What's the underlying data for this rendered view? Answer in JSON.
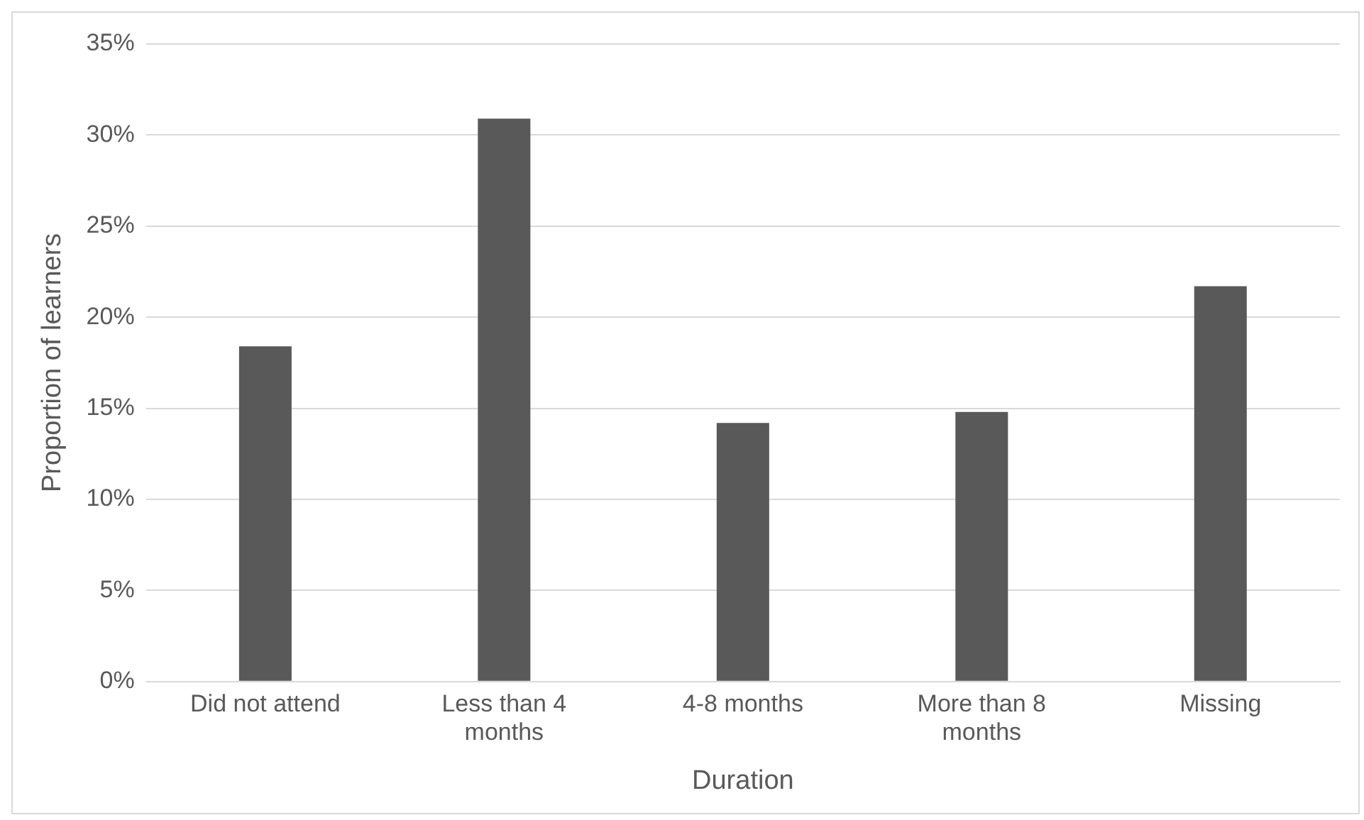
{
  "chart_data": {
    "type": "bar",
    "xlabel": "Duration",
    "ylabel": "Proportion of learners",
    "categories": [
      "Did not attend",
      "Less than 4 months",
      "4-8 months",
      "More than 8 months",
      "Missing"
    ],
    "values": [
      18.4,
      30.9,
      14.2,
      14.8,
      21.7
    ],
    "color": "#595959",
    "ylim": [
      0,
      35
    ],
    "yticks": [
      {
        "value": 0,
        "label": "0%"
      },
      {
        "value": 5,
        "label": "5%"
      },
      {
        "value": 10,
        "label": "10%"
      },
      {
        "value": 15,
        "label": "15%"
      },
      {
        "value": 20,
        "label": "20%"
      },
      {
        "value": 25,
        "label": "25%"
      },
      {
        "value": 30,
        "label": "30%"
      },
      {
        "value": 35,
        "label": "35%"
      }
    ],
    "grid": "y",
    "legend": false
  }
}
